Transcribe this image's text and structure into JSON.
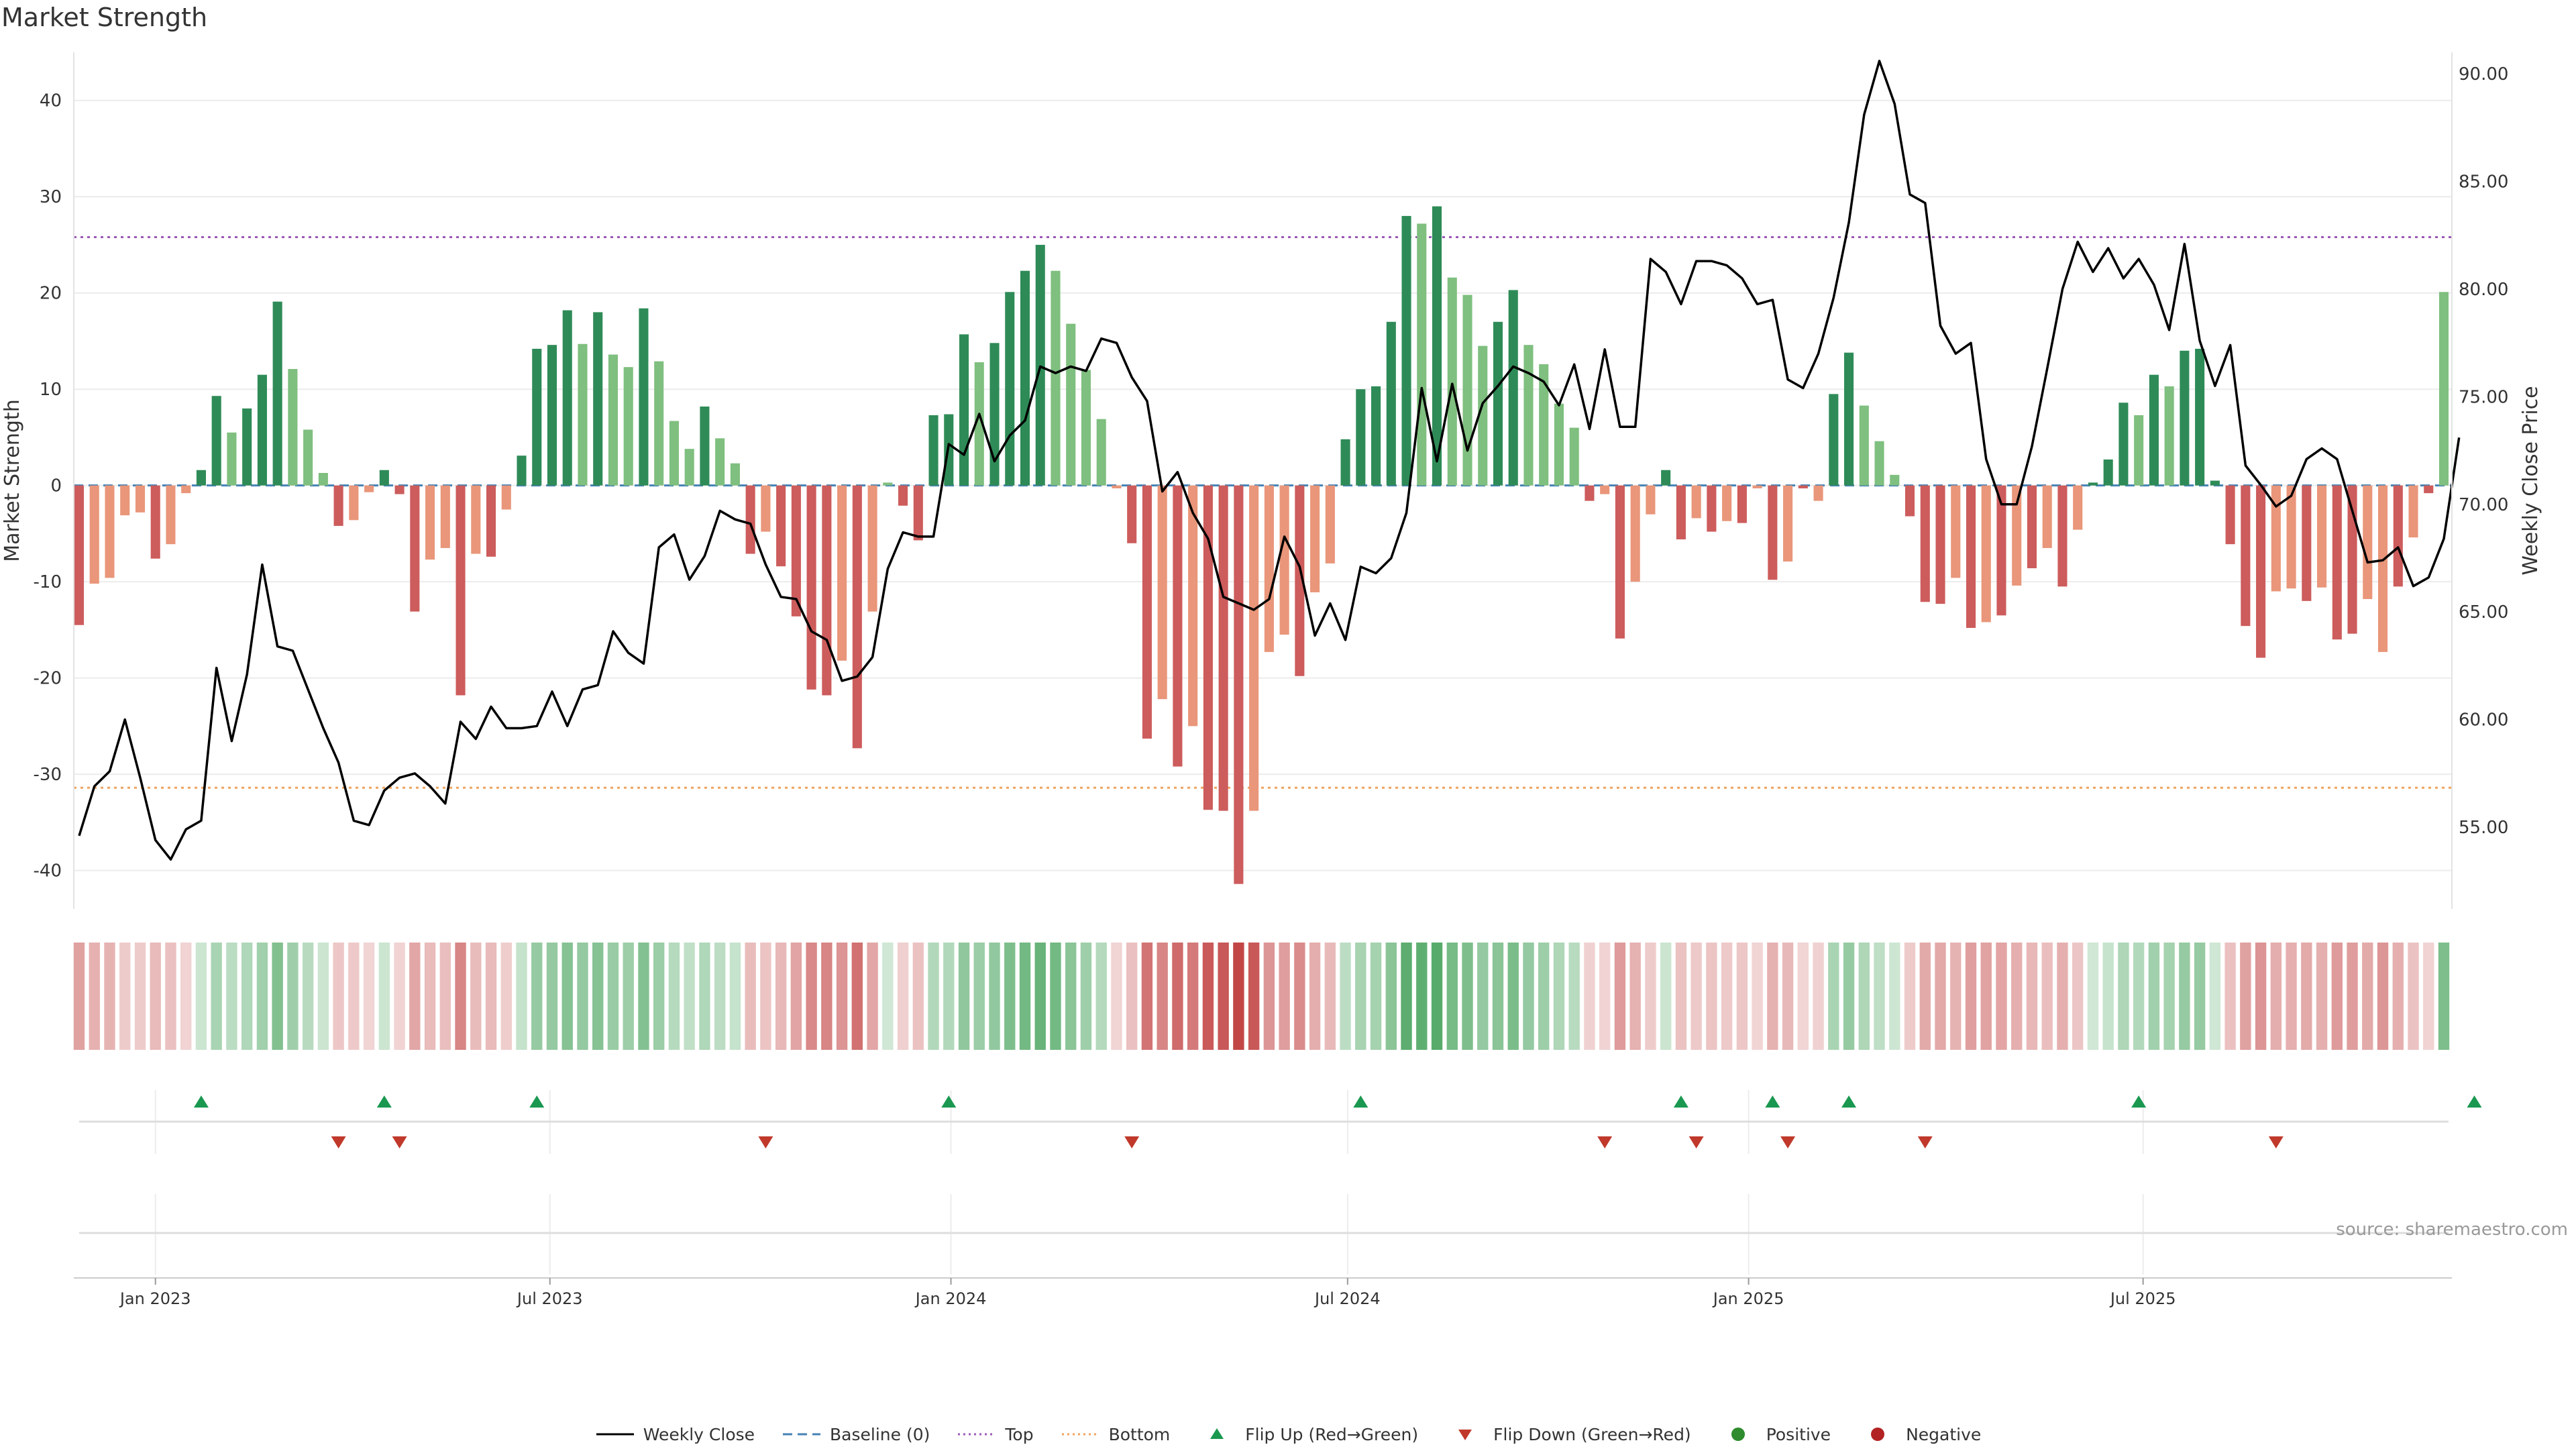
{
  "title": "Market Strength",
  "source": "source: sharemaestro.com",
  "colors": {
    "strong_green": "#2e8b57",
    "light_green": "#7fbf7f",
    "strong_red": "#cd5c5c",
    "light_red": "#e9967a",
    "close_line": "#000000",
    "baseline": "#4682b4",
    "top_line": "#9b59b6",
    "bottom_line": "#f0a35e",
    "flip_up": "#1a9850",
    "flip_down": "#c0392b"
  },
  "legend": [
    {
      "label": "Weekly Close",
      "style": "solid",
      "color": "#000000"
    },
    {
      "label": "Baseline (0)",
      "style": "dashed",
      "color": "#4682b4"
    },
    {
      "label": "Top",
      "style": "dotted",
      "color": "#9b59b6"
    },
    {
      "label": "Bottom",
      "style": "dotted",
      "color": "#f0a35e"
    },
    {
      "label": "Flip Up (Red→Green)",
      "style": "triangle-up",
      "color": "#1a9850"
    },
    {
      "label": "Flip Down (Green→Red)",
      "style": "triangle-down",
      "color": "#c0392b"
    },
    {
      "label": "Positive",
      "style": "dot",
      "color": "#2e8b2e"
    },
    {
      "label": "Negative",
      "style": "dot",
      "color": "#b22222"
    }
  ],
  "chart_data": {
    "type": "bar",
    "title": "Market Strength",
    "ylabel": "Market Strength",
    "y2label": "Weekly Close Price",
    "ylim": [
      -44,
      45
    ],
    "y2lim": [
      51.2,
      91
    ],
    "yticks": [
      -40,
      -30,
      -20,
      -10,
      0,
      10,
      20,
      30,
      40
    ],
    "y2ticks": [
      "55.00",
      "60.00",
      "65.00",
      "70.00",
      "75.00",
      "80.00",
      "85.00",
      "90.00"
    ],
    "x_start": "2022-11-27",
    "week_interval_days": 7,
    "xticks": [
      {
        "label": "Jan 2023",
        "date": "2023-01-01"
      },
      {
        "label": "Jul 2023",
        "date": "2023-07-01"
      },
      {
        "label": "Jan 2024",
        "date": "2024-01-01"
      },
      {
        "label": "Jul 2024",
        "date": "2024-07-01"
      },
      {
        "label": "Jan 2025",
        "date": "2025-01-01"
      },
      {
        "label": "Jul 2025",
        "date": "2025-07-01"
      }
    ],
    "reference_lines": {
      "top": 25.8,
      "bottom": -31.4,
      "baseline": 0
    },
    "series": [
      {
        "name": "Market Strength",
        "values": [
          -14.5,
          -10.2,
          -9.6,
          -3.1,
          -2.8,
          -7.6,
          -6.1,
          -0.8,
          1.6,
          9.3,
          5.5,
          8.0,
          11.5,
          19.1,
          12.1,
          5.8,
          1.3,
          -4.2,
          -3.6,
          -0.7,
          1.6,
          -0.9,
          -13.1,
          -7.7,
          -6.5,
          -21.8,
          -7.1,
          -7.4,
          -2.5,
          3.1,
          14.2,
          14.6,
          18.2,
          14.7,
          18.0,
          13.6,
          12.3,
          18.4,
          12.9,
          6.7,
          3.8,
          8.2,
          4.9,
          2.3,
          -7.1,
          -4.8,
          -8.4,
          -13.6,
          -21.2,
          -21.8,
          -18.2,
          -27.3,
          -13.1,
          0.3,
          -2.1,
          -5.7,
          7.3,
          7.4,
          15.7,
          12.8,
          14.8,
          20.1,
          22.3,
          25.0,
          22.3,
          16.8,
          12.0,
          6.9,
          -0.3,
          -6.0,
          -26.3,
          -22.2,
          -29.2,
          -25.0,
          -33.7,
          -33.8,
          -41.4,
          -33.8,
          -17.3,
          -15.5,
          -19.8,
          -11.1,
          -8.1,
          4.8,
          10.0,
          10.3,
          17.0,
          28.0,
          27.2,
          29.0,
          21.6,
          19.8,
          14.5,
          17.0,
          20.3,
          14.6,
          12.6,
          8.5,
          6.0,
          -1.6,
          -0.9,
          -15.9,
          -10.0,
          -3.0,
          1.6,
          -5.6,
          -3.4,
          -4.8,
          -3.7,
          -3.9,
          -0.3,
          -9.8,
          -7.9,
          -0.3,
          -1.6,
          9.5,
          13.8,
          8.3,
          4.6,
          1.1,
          -3.2,
          -12.1,
          -12.3,
          -9.6,
          -14.8,
          -14.2,
          -13.5,
          -10.4,
          -8.6,
          -6.5,
          -10.5,
          -4.6,
          0.3,
          2.7,
          8.6,
          7.3,
          11.5,
          10.3,
          14.0,
          14.2,
          0.5,
          -6.1,
          -14.6,
          -17.9,
          -11.0,
          -10.7,
          -12.0,
          -10.6,
          -16.0,
          -15.4,
          -11.8,
          -17.3,
          -10.5,
          -5.4,
          -0.8,
          20.1
        ],
        "tones": [
          "strong",
          "light",
          "light",
          "light",
          "light",
          "strong",
          "light",
          "light",
          "strong",
          "strong",
          "light",
          "strong",
          "strong",
          "strong",
          "light",
          "light",
          "light",
          "strong",
          "light",
          "light",
          "strong",
          "strong",
          "strong",
          "light",
          "light",
          "strong",
          "light",
          "strong",
          "light",
          "strong",
          "strong",
          "strong",
          "strong",
          "light",
          "strong",
          "light",
          "light",
          "strong",
          "light",
          "light",
          "light",
          "strong",
          "light",
          "light",
          "strong",
          "light",
          "strong",
          "strong",
          "strong",
          "strong",
          "light",
          "strong",
          "light",
          "light",
          "strong",
          "strong",
          "strong",
          "strong",
          "strong",
          "light",
          "strong",
          "strong",
          "strong",
          "strong",
          "light",
          "light",
          "light",
          "light",
          "light",
          "strong",
          "strong",
          "light",
          "strong",
          "light",
          "strong",
          "strong",
          "strong",
          "light",
          "light",
          "light",
          "strong",
          "light",
          "light",
          "strong",
          "strong",
          "strong",
          "strong",
          "strong",
          "light",
          "strong",
          "light",
          "light",
          "light",
          "strong",
          "strong",
          "light",
          "light",
          "light",
          "light",
          "strong",
          "light",
          "strong",
          "light",
          "light",
          "strong",
          "strong",
          "light",
          "strong",
          "light",
          "strong",
          "light",
          "strong",
          "light",
          "strong",
          "light",
          "strong",
          "strong",
          "light",
          "light",
          "light",
          "strong",
          "strong",
          "strong",
          "light",
          "strong",
          "light",
          "strong",
          "light",
          "strong",
          "light",
          "strong",
          "light",
          "strong",
          "strong",
          "strong",
          "light",
          "strong",
          "light",
          "strong",
          "strong",
          "strong",
          "strong",
          "strong",
          "strong",
          "light",
          "light",
          "strong",
          "light",
          "strong",
          "strong",
          "light",
          "light",
          "strong",
          "light",
          "strong"
        ]
      },
      {
        "name": "Weekly Close",
        "values": [
          54.6,
          56.9,
          57.6,
          60.0,
          57.3,
          54.4,
          53.5,
          54.9,
          55.3,
          62.4,
          59.0,
          62.1,
          67.2,
          63.4,
          63.2,
          61.4,
          59.6,
          58.0,
          55.3,
          55.1,
          56.7,
          57.3,
          57.5,
          56.9,
          56.1,
          59.9,
          59.1,
          60.6,
          59.6,
          59.6,
          59.7,
          61.3,
          59.7,
          61.4,
          61.6,
          64.1,
          63.1,
          62.6,
          68.0,
          68.6,
          66.5,
          67.6,
          69.7,
          69.3,
          69.1,
          67.2,
          65.7,
          65.6,
          64.1,
          63.7,
          61.8,
          62.0,
          62.9,
          67.0,
          68.7,
          68.5,
          68.5,
          72.8,
          72.3,
          74.2,
          72.0,
          73.2,
          73.9,
          76.4,
          76.1,
          76.4,
          76.2,
          77.7,
          77.5,
          75.9,
          74.8,
          70.6,
          71.5,
          69.6,
          68.4,
          65.7,
          65.4,
          65.1,
          65.6,
          68.5,
          67.1,
          63.9,
          65.4,
          63.7,
          67.1,
          66.8,
          67.5,
          69.6,
          75.4,
          72.0,
          75.6,
          72.5,
          74.7,
          75.5,
          76.4,
          76.1,
          75.7,
          74.6,
          76.5,
          73.5,
          77.2,
          73.6,
          73.6,
          81.4,
          80.8,
          79.3,
          81.3,
          81.3,
          81.1,
          80.5,
          79.3,
          79.5,
          75.8,
          75.4,
          77.0,
          79.6,
          83.1,
          88.1,
          90.6,
          88.6,
          84.4,
          84.0,
          78.3,
          77.0,
          77.5,
          72.1,
          70.0,
          70.0,
          72.7,
          76.3,
          80.0,
          82.2,
          80.8,
          81.9,
          80.5,
          81.4,
          80.2,
          78.1,
          82.1,
          77.6,
          75.5,
          77.4,
          71.8,
          70.9,
          69.9,
          70.4,
          72.1,
          72.6,
          72.1,
          69.7,
          67.3,
          67.4,
          68.0,
          66.2,
          66.6,
          68.4,
          73.1
        ]
      }
    ],
    "flip_up_weeks": [
      8,
      20,
      30,
      57,
      84,
      105,
      111,
      116,
      135,
      157
    ],
    "flip_down_weeks": [
      17,
      21,
      45,
      69,
      100,
      106,
      112,
      121,
      144
    ],
    "heat_strip": "Market Strength per week"
  }
}
